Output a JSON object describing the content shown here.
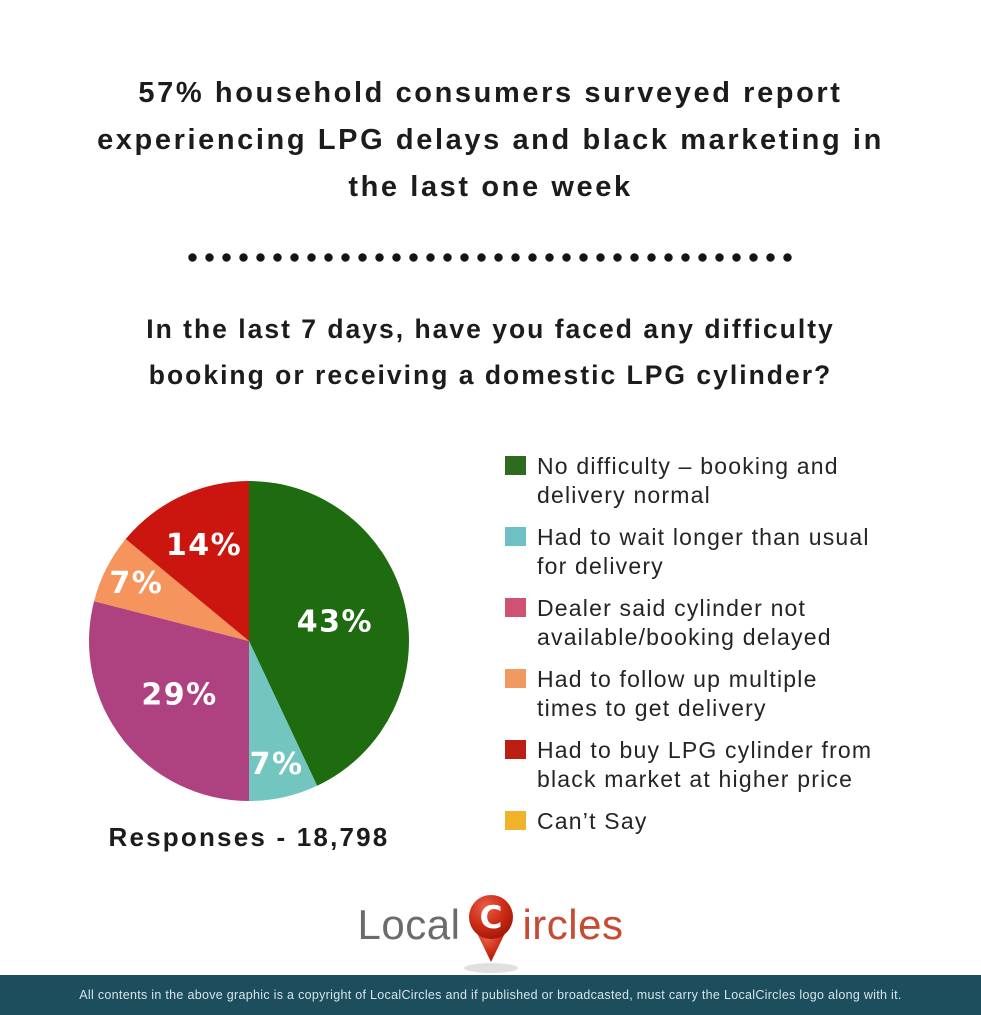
{
  "title": {
    "line1": "57% household consumers surveyed report",
    "line2": "experiencing LPG delays and black marketing in",
    "line3": "the last one week"
  },
  "question": {
    "line1": "In the last 7 days, have you faced any difficulty",
    "line2": "booking or receiving a domestic LPG cylinder?"
  },
  "chart_data": {
    "type": "pie",
    "responses_label": "Responses - 18,798",
    "legend_position": "right",
    "label_color": "#ffffff",
    "segments": [
      {
        "label": "No difficulty – booking and delivery normal",
        "lines": [
          "No difficulty – booking and",
          "delivery normal"
        ],
        "value": 43,
        "display": "43%",
        "pie_color": "#1e6b10",
        "legend_color": "#2f6b1f"
      },
      {
        "label": "Had to wait longer than usual for delivery",
        "lines": [
          "Had to wait longer than usual",
          "for delivery"
        ],
        "value": 7,
        "display": "7%",
        "pie_color": "#72c6bf",
        "legend_color": "#6fc0c4"
      },
      {
        "label": "Dealer said cylinder not available/booking delayed",
        "lines": [
          "Dealer said cylinder not",
          "available/booking delayed"
        ],
        "value": 29,
        "display": "29%",
        "pie_color": "#ae4180",
        "legend_color": "#cf5273"
      },
      {
        "label": "Had to follow up multiple times to get delivery",
        "lines": [
          "Had to follow up multiple",
          "times to get delivery"
        ],
        "value": 7,
        "display": "7%",
        "pie_color": "#f5945c",
        "legend_color": "#f09a62"
      },
      {
        "label": "Had to buy LPG cylinder from black market at higher price",
        "lines": [
          "Had to buy LPG cylinder from",
          "black market at higher price"
        ],
        "value": 14,
        "display": "14%",
        "pie_color": "#cb150f",
        "legend_color": "#bb1f14"
      },
      {
        "label": "Can’t Say",
        "lines": [
          "Can’t Say"
        ],
        "value": 0,
        "display": "",
        "pie_color": null,
        "legend_color": "#f0b42a"
      }
    ]
  },
  "logo": {
    "local": "Local",
    "circles": "ircles",
    "pin_letter": "C",
    "local_color": "#6a6b6d",
    "circles_color": "#c74a31"
  },
  "footer": {
    "text": "All contents in the above graphic is a copyright of LocalCircles and if published or broadcasted, must carry the LocalCircles logo along with it.",
    "bg_color": "#1d4e5e"
  }
}
